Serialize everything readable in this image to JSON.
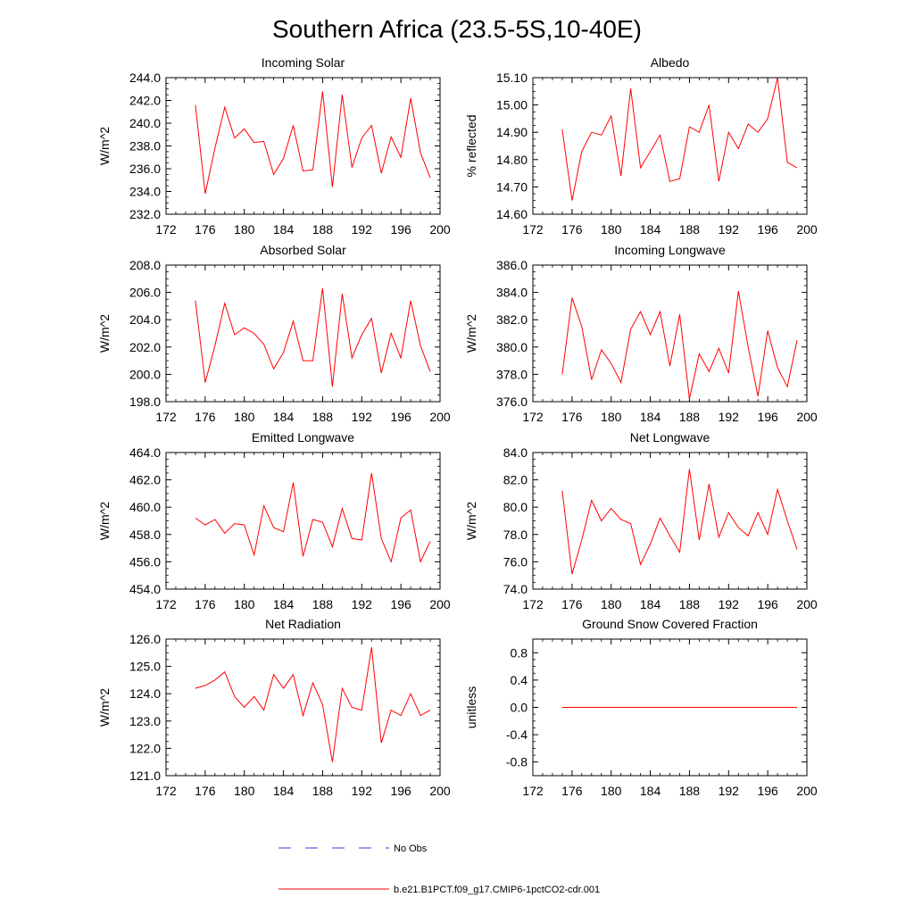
{
  "figure": {
    "title": "Southern Africa (23.5-5S,10-40E)"
  },
  "legend": [
    {
      "label": "No Obs",
      "color": "#3b3bd6",
      "style": "dashed"
    },
    {
      "label": "b.e21.B1PCT.f09_g17.CMIP6-1pctCO2-cdr.001",
      "color": "#ff0000",
      "style": "solid"
    }
  ],
  "chart_data": [
    {
      "type": "line",
      "title": "Incoming Solar",
      "ylabel": "W/m^2",
      "xlim": [
        172,
        200
      ],
      "ylim": [
        232.0,
        244.0
      ],
      "xticks": [
        "172",
        "176",
        "180",
        "184",
        "188",
        "192",
        "196",
        "200"
      ],
      "yticks": [
        "232.0",
        "234.0",
        "236.0",
        "238.0",
        "240.0",
        "242.0",
        "244.0"
      ],
      "x": [
        175,
        176,
        177,
        178,
        179,
        180,
        181,
        182,
        183,
        184,
        185,
        186,
        187,
        188,
        189,
        190,
        191,
        192,
        193,
        194,
        195,
        196,
        197,
        198,
        199
      ],
      "series": [
        {
          "name": "b.e21.B1PCT.f09_g17.CMIP6-1pctCO2-cdr.001",
          "color": "#ff0000",
          "values": [
            241.6,
            233.8,
            237.8,
            241.4,
            238.7,
            239.5,
            238.3,
            238.4,
            235.5,
            236.9,
            239.8,
            235.8,
            235.9,
            242.8,
            234.4,
            242.5,
            236.1,
            238.7,
            239.8,
            235.6,
            238.8,
            237.0,
            242.2,
            237.4,
            235.2
          ]
        }
      ]
    },
    {
      "type": "line",
      "title": "Albedo",
      "ylabel": "% reflected",
      "xlim": [
        172,
        200
      ],
      "ylim": [
        14.6,
        15.1
      ],
      "xticks": [
        "172",
        "176",
        "180",
        "184",
        "188",
        "192",
        "196",
        "200"
      ],
      "yticks": [
        "14.60",
        "14.70",
        "14.80",
        "14.90",
        "15.00",
        "15.10"
      ],
      "x": [
        175,
        176,
        177,
        178,
        179,
        180,
        181,
        182,
        183,
        184,
        185,
        186,
        187,
        188,
        189,
        190,
        191,
        192,
        193,
        194,
        195,
        196,
        197,
        198,
        199
      ],
      "series": [
        {
          "name": "b.e21.B1PCT.f09_g17.CMIP6-1pctCO2-cdr.001",
          "color": "#ff0000",
          "values": [
            14.91,
            14.65,
            14.83,
            14.9,
            14.89,
            14.96,
            14.74,
            15.06,
            14.77,
            14.83,
            14.89,
            14.72,
            14.73,
            14.92,
            14.9,
            15.0,
            14.72,
            14.9,
            14.84,
            14.93,
            14.9,
            14.95,
            15.1,
            14.79,
            14.77
          ]
        }
      ]
    },
    {
      "type": "line",
      "title": "Absorbed Solar",
      "ylabel": "W/m^2",
      "xlim": [
        172,
        200
      ],
      "ylim": [
        198.0,
        208.0
      ],
      "xticks": [
        "172",
        "176",
        "180",
        "184",
        "188",
        "192",
        "196",
        "200"
      ],
      "yticks": [
        "198.0",
        "200.0",
        "202.0",
        "204.0",
        "206.0",
        "208.0"
      ],
      "x": [
        175,
        176,
        177,
        178,
        179,
        180,
        181,
        182,
        183,
        184,
        185,
        186,
        187,
        188,
        189,
        190,
        191,
        192,
        193,
        194,
        195,
        196,
        197,
        198,
        199
      ],
      "series": [
        {
          "name": "b.e21.B1PCT.f09_g17.CMIP6-1pctCO2-cdr.001",
          "color": "#ff0000",
          "values": [
            205.4,
            199.4,
            202.1,
            205.2,
            202.9,
            203.4,
            203.0,
            202.2,
            200.4,
            201.6,
            203.9,
            201.0,
            201.0,
            206.3,
            199.1,
            205.9,
            201.2,
            202.9,
            204.1,
            200.1,
            203.0,
            201.2,
            205.4,
            202.1,
            200.2
          ]
        }
      ]
    },
    {
      "type": "line",
      "title": "Incoming Longwave",
      "ylabel": "W/m^2",
      "xlim": [
        172,
        200
      ],
      "ylim": [
        376.0,
        386.0
      ],
      "xticks": [
        "172",
        "176",
        "180",
        "184",
        "188",
        "192",
        "196",
        "200"
      ],
      "yticks": [
        "376.0",
        "378.0",
        "380.0",
        "382.0",
        "384.0",
        "386.0"
      ],
      "x": [
        175,
        176,
        177,
        178,
        179,
        180,
        181,
        182,
        183,
        184,
        185,
        186,
        187,
        188,
        189,
        190,
        191,
        192,
        193,
        194,
        195,
        196,
        197,
        198,
        199
      ],
      "series": [
        {
          "name": "b.e21.B1PCT.f09_g17.CMIP6-1pctCO2-cdr.001",
          "color": "#ff0000",
          "values": [
            378.0,
            383.6,
            381.5,
            377.6,
            379.8,
            378.8,
            377.4,
            381.3,
            382.6,
            380.9,
            382.6,
            378.6,
            382.4,
            376.2,
            379.5,
            378.2,
            379.9,
            378.1,
            384.1,
            380.0,
            376.4,
            381.2,
            378.5,
            377.1,
            380.5
          ]
        }
      ]
    },
    {
      "type": "line",
      "title": "Emitted Longwave",
      "ylabel": "W/m^2",
      "xlim": [
        172,
        200
      ],
      "ylim": [
        454.0,
        464.0
      ],
      "xticks": [
        "172",
        "176",
        "180",
        "184",
        "188",
        "192",
        "196",
        "200"
      ],
      "yticks": [
        "454.0",
        "456.0",
        "458.0",
        "460.0",
        "462.0",
        "464.0"
      ],
      "x": [
        175,
        176,
        177,
        178,
        179,
        180,
        181,
        182,
        183,
        184,
        185,
        186,
        187,
        188,
        189,
        190,
        191,
        192,
        193,
        194,
        195,
        196,
        197,
        198,
        199
      ],
      "series": [
        {
          "name": "b.e21.B1PCT.f09_g17.CMIP6-1pctCO2-cdr.001",
          "color": "#ff0000",
          "values": [
            459.2,
            458.7,
            459.1,
            458.1,
            458.8,
            458.7,
            456.5,
            460.1,
            458.5,
            458.2,
            461.8,
            456.4,
            459.1,
            458.9,
            457.1,
            459.9,
            457.7,
            457.6,
            462.5,
            457.7,
            456.0,
            459.2,
            459.8,
            456.0,
            457.5
          ]
        }
      ]
    },
    {
      "type": "line",
      "title": "Net Longwave",
      "ylabel": "W/m^2",
      "xlim": [
        172,
        200
      ],
      "ylim": [
        74.0,
        84.0
      ],
      "xticks": [
        "172",
        "176",
        "180",
        "184",
        "188",
        "192",
        "196",
        "200"
      ],
      "yticks": [
        "74.0",
        "76.0",
        "78.0",
        "80.0",
        "82.0",
        "84.0"
      ],
      "x": [
        175,
        176,
        177,
        178,
        179,
        180,
        181,
        182,
        183,
        184,
        185,
        186,
        187,
        188,
        189,
        190,
        191,
        192,
        193,
        194,
        195,
        196,
        197,
        198,
        199
      ],
      "series": [
        {
          "name": "b.e21.B1PCT.f09_g17.CMIP6-1pctCO2-cdr.001",
          "color": "#ff0000",
          "values": [
            81.2,
            75.1,
            77.6,
            80.5,
            79.0,
            79.9,
            79.1,
            78.8,
            75.8,
            77.3,
            79.2,
            77.9,
            76.7,
            82.8,
            77.6,
            81.7,
            77.8,
            79.6,
            78.5,
            77.9,
            79.6,
            78.0,
            81.3,
            79.0,
            76.9
          ]
        }
      ]
    },
    {
      "type": "line",
      "title": "Net Radiation",
      "ylabel": "W/m^2",
      "xlim": [
        172,
        200
      ],
      "ylim": [
        121.0,
        126.0
      ],
      "xticks": [
        "172",
        "176",
        "180",
        "184",
        "188",
        "192",
        "196",
        "200"
      ],
      "yticks": [
        "121.0",
        "122.0",
        "123.0",
        "124.0",
        "125.0",
        "126.0"
      ],
      "x": [
        175,
        176,
        177,
        178,
        179,
        180,
        181,
        182,
        183,
        184,
        185,
        186,
        187,
        188,
        189,
        190,
        191,
        192,
        193,
        194,
        195,
        196,
        197,
        198,
        199
      ],
      "series": [
        {
          "name": "b.e21.B1PCT.f09_g17.CMIP6-1pctCO2-cdr.001",
          "color": "#ff0000",
          "values": [
            124.2,
            124.3,
            124.5,
            124.8,
            123.9,
            123.5,
            123.9,
            123.4,
            124.7,
            124.2,
            124.7,
            123.2,
            124.4,
            123.6,
            121.5,
            124.2,
            123.5,
            123.4,
            125.7,
            122.2,
            123.4,
            123.2,
            124.0,
            123.2,
            123.4
          ]
        }
      ]
    },
    {
      "type": "line",
      "title": "Ground Snow Covered Fraction",
      "ylabel": "unitless",
      "xlim": [
        172,
        200
      ],
      "ylim": [
        -1.0,
        1.0
      ],
      "xticks": [
        "172",
        "176",
        "180",
        "184",
        "188",
        "192",
        "196",
        "200"
      ],
      "yticks": [
        "-0.8",
        "-0.4",
        "0.0",
        "0.4",
        "0.8"
      ],
      "ytickvals": [
        -0.8,
        -0.4,
        0.0,
        0.4,
        0.8
      ],
      "x": [
        175,
        199
      ],
      "series": [
        {
          "name": "b.e21.B1PCT.f09_g17.CMIP6-1pctCO2-cdr.001",
          "color": "#ff0000",
          "values": [
            0.0,
            0.0
          ]
        }
      ]
    }
  ]
}
